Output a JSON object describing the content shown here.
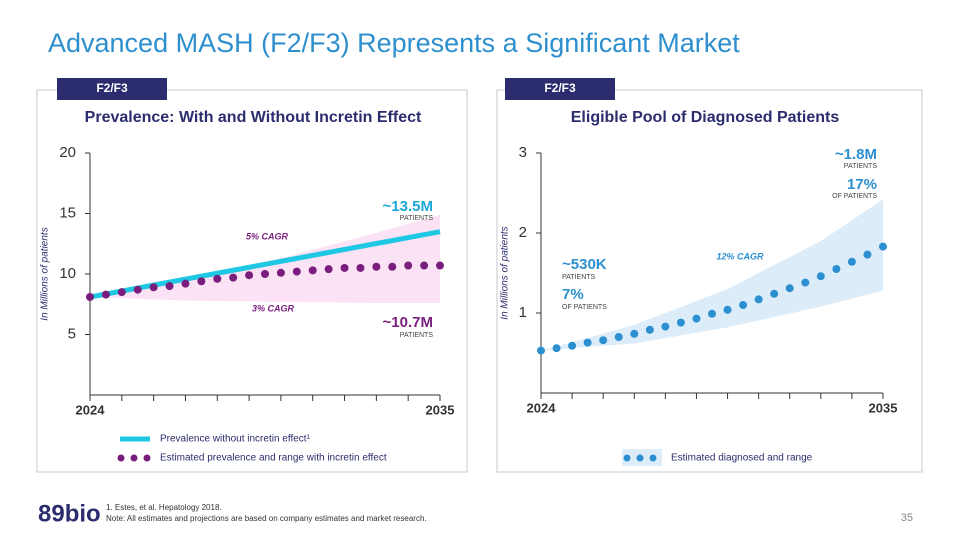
{
  "title": "Advanced MASH (F2/F3) Represents a Significant Market",
  "footnotes": [
    "1. Estes, et al. Hepatology 2018.",
    "Note: All estimates and projections are based on company estimates and market research."
  ],
  "page_number": "35",
  "logo": "89bio",
  "chart_data": [
    {
      "type": "line",
      "tag": "F2/F3",
      "title": "Prevalence: With and Without Incretin Effect",
      "y_label": "In Millions of patients",
      "xlim": [
        2024,
        2035
      ],
      "xticks": [
        2024,
        2035
      ],
      "xminorticks": [
        2025,
        2026,
        2027,
        2028,
        2029,
        2030,
        2031,
        2032,
        2033,
        2034
      ],
      "ylim": [
        0,
        20
      ],
      "yticks": [
        5,
        10,
        15,
        20
      ],
      "range": {
        "color": "#fbe2f4",
        "x": [
          2024,
          2027,
          2030,
          2033,
          2035
        ],
        "upper": [
          8.1,
          9.6,
          11.3,
          13.4,
          14.9
        ],
        "lower": [
          8.1,
          7.8,
          7.7,
          7.6,
          7.6
        ]
      },
      "series": [
        {
          "name": "Prevalence without incretin effect¹",
          "style": "line",
          "color": "#1ec8e3",
          "x": [
            2024,
            2035
          ],
          "values": [
            8.1,
            13.5
          ]
        },
        {
          "name": "Estimated prevalence and range with incretin effect",
          "style": "dots",
          "color": "#7a1e7e",
          "x": [
            2024,
            2024.5,
            2025,
            2025.5,
            2026,
            2026.5,
            2027,
            2027.5,
            2028,
            2028.5,
            2029,
            2029.5,
            2030,
            2030.5,
            2031,
            2031.5,
            2032,
            2032.5,
            2033,
            2033.5,
            2034,
            2034.5,
            2035
          ],
          "values": [
            8.1,
            8.3,
            8.5,
            8.7,
            8.9,
            9.0,
            9.2,
            9.4,
            9.6,
            9.7,
            9.9,
            10.0,
            10.1,
            10.2,
            10.3,
            10.4,
            10.5,
            10.5,
            10.6,
            10.6,
            10.7,
            10.7,
            10.7
          ]
        }
      ],
      "annotations": [
        {
          "text": "~13.5M",
          "color": "#1ba6d8"
        },
        {
          "text": "PATIENTS",
          "color": "#444444"
        },
        {
          "text": "5% CAGR",
          "color": "#7a1e7e"
        },
        {
          "text": "3% CAGR",
          "color": "#7a1e7e"
        },
        {
          "text": "~10.7M",
          "color": "#7a1e7e"
        },
        {
          "text": "PATIENTS",
          "color": "#444444"
        }
      ]
    },
    {
      "type": "line",
      "tag": "F2/F3",
      "title": "Eligible Pool of Diagnosed Patients",
      "y_label": "In Millions of patients",
      "xlim": [
        2024,
        2035
      ],
      "xticks": [
        2024,
        2035
      ],
      "xminorticks": [
        2025,
        2026,
        2027,
        2028,
        2029,
        2030,
        2031,
        2032,
        2033,
        2034
      ],
      "ylim": [
        0,
        3
      ],
      "yticks": [
        1,
        2,
        3
      ],
      "range": {
        "color": "#dcedf9",
        "x": [
          2024,
          2027,
          2030,
          2033,
          2035
        ],
        "upper": [
          0.53,
          0.85,
          1.3,
          1.9,
          2.42
        ],
        "lower": [
          0.53,
          0.62,
          0.82,
          1.08,
          1.28
        ]
      },
      "series": [
        {
          "name": "Estimated diagnosed and range",
          "style": "dots",
          "color": "#2b8fd0",
          "x": [
            2024,
            2024.5,
            2025,
            2025.5,
            2026,
            2026.5,
            2027,
            2027.5,
            2028,
            2028.5,
            2029,
            2029.5,
            2030,
            2030.5,
            2031,
            2031.5,
            2032,
            2032.5,
            2033,
            2033.5,
            2034,
            2034.5,
            2035
          ],
          "values": [
            0.53,
            0.56,
            0.59,
            0.63,
            0.66,
            0.7,
            0.74,
            0.79,
            0.83,
            0.88,
            0.93,
            0.99,
            1.04,
            1.1,
            1.17,
            1.24,
            1.31,
            1.38,
            1.46,
            1.55,
            1.64,
            1.73,
            1.83
          ]
        }
      ],
      "annotations": [
        {
          "text": "~1.8M",
          "color": "#2b8fd0"
        },
        {
          "text": "PATIENTS",
          "color": "#444444"
        },
        {
          "text": "17%",
          "color": "#2b8fd0"
        },
        {
          "text": "OF PATIENTS",
          "color": "#444444"
        },
        {
          "text": "12% CAGR",
          "color": "#2b8fd0"
        },
        {
          "text": "~530K",
          "color": "#2b8fd0"
        },
        {
          "text": "PATIENTS",
          "color": "#444444"
        },
        {
          "text": "7%",
          "color": "#2b8fd0"
        },
        {
          "text": "OF PATIENTS",
          "color": "#444444"
        }
      ]
    }
  ]
}
